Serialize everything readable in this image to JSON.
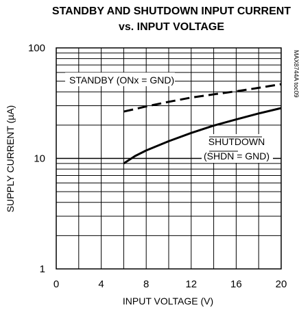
{
  "chart_data": {
    "type": "line",
    "title_line1": "STANDBY AND SHUTDOWN INPUT CURRENT",
    "title_line2": "vs. INPUT VOLTAGE",
    "xlabel": "INPUT VOLTAGE (V)",
    "ylabel": "SUPPLY CURRENT (µA)",
    "figure_id": "MAX8744A toc09",
    "x_scale": "linear",
    "y_scale": "log",
    "xlim": [
      0,
      20
    ],
    "ylim": [
      1,
      100
    ],
    "x_ticks": [
      "0",
      "4",
      "8",
      "12",
      "16",
      "20"
    ],
    "x_tick_values": [
      0,
      4,
      8,
      12,
      16,
      20
    ],
    "y_ticks": [
      "1",
      "10",
      "100"
    ],
    "y_tick_values": [
      1,
      10,
      100
    ],
    "grid": true,
    "series": [
      {
        "name": "STANDBY (ONx = GND)",
        "style": "dashed",
        "x": [
          6,
          8,
          10,
          12,
          14,
          16,
          18,
          20
        ],
        "y": [
          26.5,
          29.5,
          32.5,
          35.5,
          38,
          40.5,
          43.5,
          47
        ]
      },
      {
        "name_line1": "SHUTDOWN",
        "name_line2": "(SHDN = GND)",
        "style": "solid",
        "x": [
          6,
          7,
          8,
          10,
          12,
          14,
          16,
          18,
          20
        ],
        "y": [
          9,
          10.5,
          11.8,
          14.3,
          17,
          19.8,
          22.5,
          25.5,
          28.5
        ]
      }
    ]
  }
}
